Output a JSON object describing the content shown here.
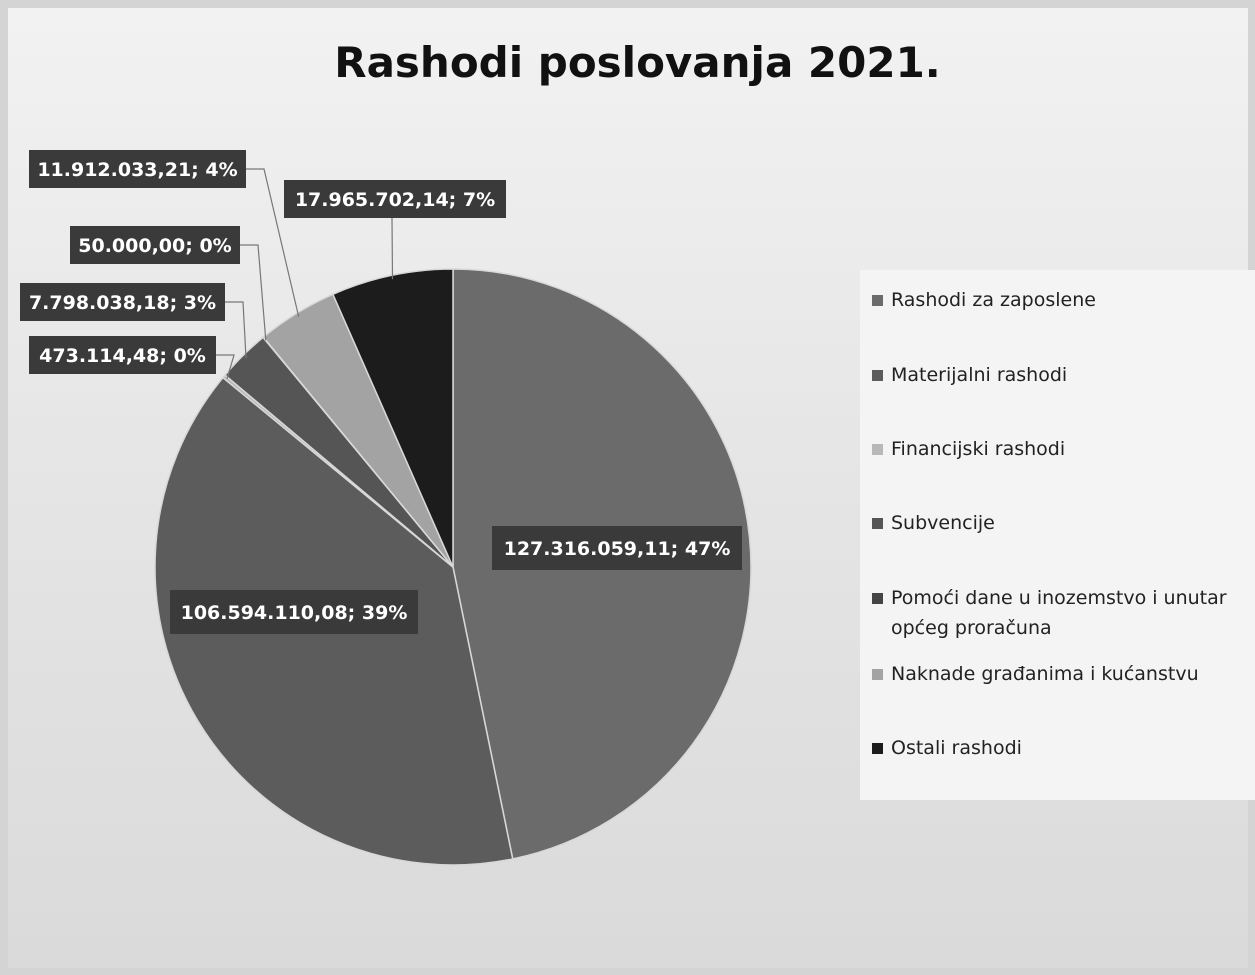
{
  "chart_data": {
    "type": "pie",
    "title": "Rashodi poslovanja 2021.",
    "slices": [
      {
        "name": "Rashodi za zaposlene",
        "value": 127316059.11,
        "percent": 47,
        "label": "127.316.059,11; 47%",
        "color": "#6b6b6b"
      },
      {
        "name": "Materijalni rashodi",
        "value": 106594110.08,
        "percent": 39,
        "label": "106.594.110,08; 39%",
        "color": "#5c5c5c"
      },
      {
        "name": "Financijski rashodi",
        "value": 473114.48,
        "percent": 0,
        "label": "473.114,48; 0%",
        "color": "#b8b8b8"
      },
      {
        "name": "Subvencije",
        "value": 7798038.18,
        "percent": 3,
        "label": "7.798.038,18; 3%",
        "color": "#555555"
      },
      {
        "name": "Pomoći dane u inozemstvo i unutar općeg proračuna",
        "value": 50000.0,
        "percent": 0,
        "label": "50.000,00; 0%",
        "color": "#444444"
      },
      {
        "name": "Naknade građanima i kućanstvu",
        "value": 11912033.21,
        "percent": 4,
        "label": "11.912.033,21; 4%",
        "color": "#a3a3a3"
      },
      {
        "name": "Ostali rashodi",
        "value": 17965702.14,
        "percent": 7,
        "label": "17.965.702,14; 7%",
        "color": "#1c1c1c"
      }
    ],
    "legend_position": "right",
    "legend": [
      "Rashodi za zaposlene",
      "Materijalni rashodi",
      "Financijski rashodi",
      "Subvencije",
      "Pomoći dane u inozemstvo i unutar općeg proračuna",
      "Naknade građanima i kućanstvu",
      "Ostali rashodi"
    ]
  }
}
